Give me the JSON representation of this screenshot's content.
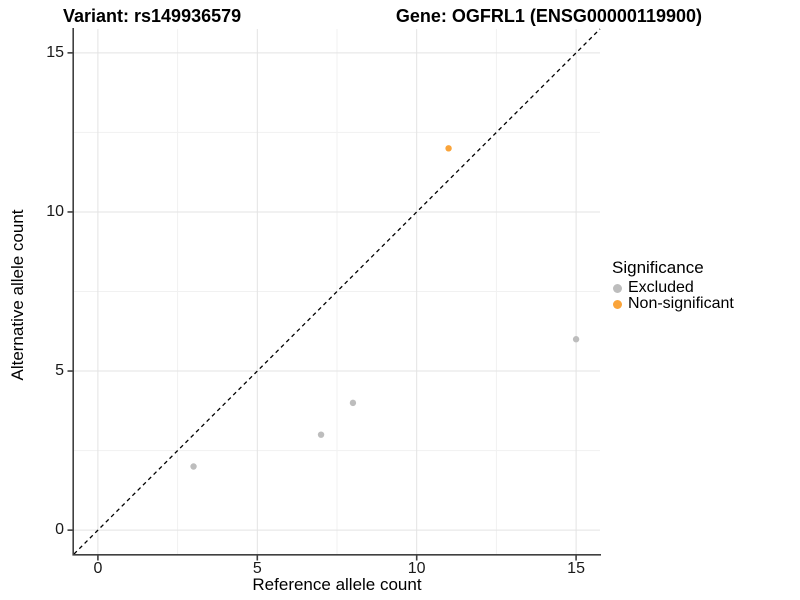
{
  "title": {
    "variant": "Variant: rs149936579",
    "gene": "Gene: OGFRL1 (ENSG00000119900)"
  },
  "legend": {
    "title": "Significance",
    "items": [
      {
        "label": "Excluded",
        "color": "#BDBDBD"
      },
      {
        "label": "Non-significant",
        "color": "#FAA43A"
      }
    ]
  },
  "colors": {
    "background": "#ffffff",
    "axis_line": "#404040",
    "grid_major": "#E3E3E3",
    "grid_minor": "#F1F1F1",
    "identity_line": "#000000",
    "excluded_point": "#BDBDBD",
    "non_significant_point": "#FAA43A"
  },
  "chart_data": {
    "type": "scatter",
    "title": "Variant: rs149936579   Gene: OGFRL1 (ENSG00000119900)",
    "xlabel": "Reference allele count",
    "ylabel": "Alternative allele count",
    "xlim": [
      -0.75,
      15.75
    ],
    "ylim": [
      -0.75,
      15.75
    ],
    "x_ticks": [
      0,
      5,
      10,
      15
    ],
    "y_ticks": [
      0,
      5,
      10,
      15
    ],
    "minor_ticks": [
      2.5,
      7.5,
      12.5
    ],
    "grid": true,
    "legend_position": "right",
    "identity_line": {
      "type": "y=x",
      "style": "dashed",
      "color": "#000000"
    },
    "series": [
      {
        "name": "Excluded",
        "color": "#BDBDBD",
        "points": [
          [
            3,
            2
          ],
          [
            7,
            3
          ],
          [
            8,
            4
          ],
          [
            15,
            6
          ]
        ]
      },
      {
        "name": "Non-significant",
        "color": "#FAA43A",
        "points": [
          [
            11,
            12
          ]
        ]
      }
    ]
  }
}
